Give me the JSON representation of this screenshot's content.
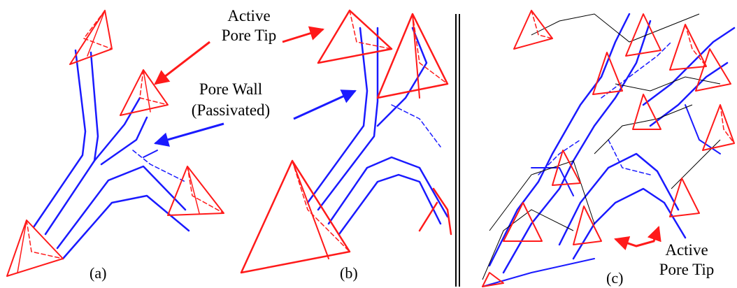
{
  "colors": {
    "tip": "#ff1a1a",
    "wall": "#1a1aff",
    "edge": "#000000",
    "background": "#ffffff"
  },
  "annotations": {
    "active_tip_top": [
      "Active",
      "Pore Tip"
    ],
    "pore_wall": [
      "Pore Wall",
      "(Passivated)"
    ],
    "active_tip_c": [
      "Active",
      "Pore Tip"
    ]
  },
  "panels": {
    "a": "(a)",
    "b": "(b)",
    "c": "(c)"
  }
}
